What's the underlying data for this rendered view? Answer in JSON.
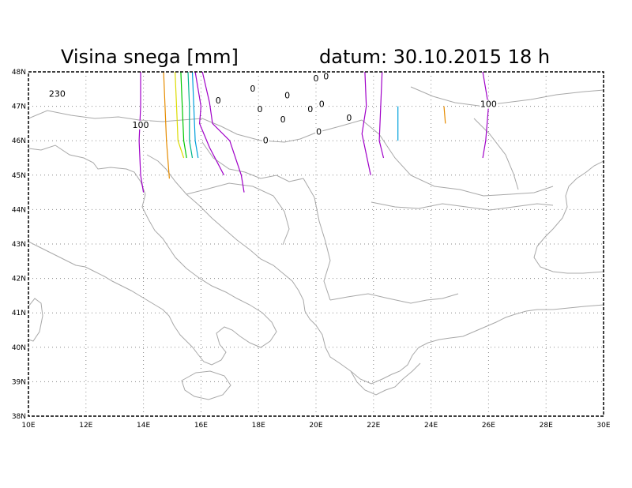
{
  "title": {
    "left": "Visina snega [mm]",
    "right": "datum: 30.10.2015   18 h"
  },
  "map": {
    "type": "contour-map",
    "lon_range": [
      10,
      30
    ],
    "lat_range": [
      38,
      48
    ],
    "x_ticks": [
      "10E",
      "12E",
      "14E",
      "16E",
      "18E",
      "20E",
      "22E",
      "24E",
      "26E",
      "28E",
      "30E"
    ],
    "y_ticks": [
      "38N",
      "39N",
      "40N",
      "41N",
      "42N",
      "43N",
      "44N",
      "45N",
      "46N",
      "47N",
      "48N"
    ],
    "grid": true,
    "frame_style": "dashed"
  },
  "contour_colors": [
    "#a000c8",
    "#e68c00",
    "#dcdc00",
    "#00c800",
    "#00b48c",
    "#00a0dc"
  ],
  "contours": [
    {
      "color": "#a000c8",
      "lonlat": [
        [
          13.9,
          48
        ],
        [
          13.9,
          47
        ],
        [
          13.85,
          46
        ],
        [
          13.9,
          45
        ],
        [
          14.0,
          44.5
        ]
      ]
    },
    {
      "color": "#e68c00",
      "lonlat": [
        [
          14.7,
          48
        ],
        [
          14.75,
          47
        ],
        [
          14.8,
          46
        ],
        [
          14.9,
          44.9
        ]
      ]
    },
    {
      "color": "#dcdc00",
      "lonlat": [
        [
          15.1,
          48
        ],
        [
          15.15,
          47
        ],
        [
          15.2,
          46
        ],
        [
          15.4,
          45.5
        ]
      ]
    },
    {
      "color": "#00c800",
      "lonlat": [
        [
          15.3,
          48
        ],
        [
          15.35,
          47
        ],
        [
          15.4,
          46
        ],
        [
          15.5,
          45.5
        ]
      ]
    },
    {
      "color": "#00b48c",
      "lonlat": [
        [
          15.55,
          48
        ],
        [
          15.6,
          47
        ],
        [
          15.6,
          46
        ],
        [
          15.7,
          45.5
        ]
      ]
    },
    {
      "color": "#00a0dc",
      "lonlat": [
        [
          15.7,
          48
        ],
        [
          15.75,
          47
        ],
        [
          15.8,
          46
        ],
        [
          15.9,
          45.5
        ]
      ]
    },
    {
      "color": "#a000c8",
      "lonlat": [
        [
          15.8,
          48
        ],
        [
          16.0,
          47
        ],
        [
          15.95,
          46.5
        ],
        [
          16.3,
          45.8
        ],
        [
          16.8,
          45
        ]
      ]
    },
    {
      "color": "#a000c8",
      "lonlat": [
        [
          16.05,
          48
        ],
        [
          16.3,
          47.1
        ],
        [
          16.4,
          46.5
        ],
        [
          17.0,
          46
        ],
        [
          17.4,
          45
        ],
        [
          17.5,
          44.5
        ]
      ]
    },
    {
      "color": "#a000c8",
      "lonlat": [
        [
          21.7,
          48
        ],
        [
          21.75,
          47
        ],
        [
          21.6,
          46.2
        ],
        [
          21.9,
          45
        ]
      ]
    },
    {
      "color": "#a000c8",
      "lonlat": [
        [
          22.3,
          48
        ],
        [
          22.25,
          47
        ],
        [
          22.2,
          46
        ],
        [
          22.35,
          45.5
        ]
      ]
    },
    {
      "color": "#00a0dc",
      "lonlat": [
        [
          22.85,
          47
        ],
        [
          22.85,
          46.5
        ],
        [
          22.85,
          46
        ]
      ]
    },
    {
      "color": "#e68c00",
      "lonlat": [
        [
          24.45,
          47
        ],
        [
          24.5,
          46.5
        ]
      ]
    },
    {
      "color": "#a000c8",
      "lonlat": [
        [
          25.8,
          48
        ],
        [
          25.9,
          47.5
        ],
        [
          26.0,
          47
        ],
        [
          25.9,
          46
        ],
        [
          25.8,
          45.5
        ]
      ]
    }
  ],
  "labels": [
    {
      "text": "230",
      "lon": 11.0,
      "lat": 47.3
    },
    {
      "text": "100",
      "lon": 13.9,
      "lat": 46.4
    },
    {
      "text": "100",
      "lon": 26.0,
      "lat": 47.0
    },
    {
      "text": "0",
      "lon": 16.6,
      "lat": 47.1
    },
    {
      "text": "0",
      "lon": 17.8,
      "lat": 47.45
    },
    {
      "text": "0",
      "lon": 18.05,
      "lat": 46.85
    },
    {
      "text": "0",
      "lon": 19.0,
      "lat": 47.25
    },
    {
      "text": "0",
      "lon": 20.0,
      "lat": 47.75
    },
    {
      "text": "0",
      "lon": 20.35,
      "lat": 47.8
    },
    {
      "text": "0",
      "lon": 20.2,
      "lat": 47.0
    },
    {
      "text": "0",
      "lon": 19.8,
      "lat": 46.85
    },
    {
      "text": "0",
      "lon": 18.85,
      "lat": 46.55
    },
    {
      "text": "0",
      "lon": 21.15,
      "lat": 46.6
    },
    {
      "text": "0",
      "lon": 20.1,
      "lat": 46.2
    },
    {
      "text": "0",
      "lon": 18.25,
      "lat": 45.95
    }
  ]
}
